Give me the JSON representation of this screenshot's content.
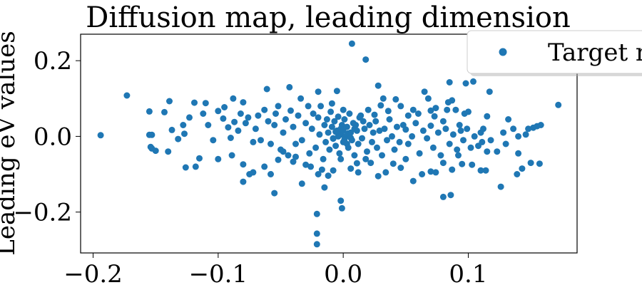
{
  "chart_data": {
    "type": "scatter",
    "title": "Diffusion map, leading dimension",
    "xlabel": "",
    "ylabel": "Leading eV values",
    "xlim": [
      -0.21,
      0.187
    ],
    "ylim": [
      -0.308,
      0.27
    ],
    "x_ticks": [
      -0.2,
      -0.1,
      0.0,
      0.1
    ],
    "x_tick_labels": [
      "−0.2",
      "−0.1",
      "0.0",
      "0.1"
    ],
    "y_ticks": [
      -0.2,
      0.0,
      0.2
    ],
    "y_tick_labels": [
      "−0.2",
      "0.0",
      "0.2"
    ],
    "grid": false,
    "legend_position": "top-right",
    "colors": {
      "series": "#1f77b4"
    },
    "series": [
      {
        "name": "Target ne",
        "points": [
          [
            0.007,
            0.245
          ],
          [
            0.018,
            0.203
          ],
          [
            -0.173,
            0.108
          ],
          [
            -0.194,
            0.003
          ],
          [
            0.172,
            0.083
          ],
          [
            -0.021,
            -0.205
          ],
          [
            -0.021,
            -0.257
          ],
          [
            -0.021,
            -0.285
          ],
          [
            -0.002,
            -0.17
          ],
          [
            -0.001,
            -0.19
          ],
          [
            -0.015,
            -0.135
          ],
          [
            -0.033,
            -0.125
          ],
          [
            -0.055,
            -0.15
          ],
          [
            0.0,
            0.07
          ],
          [
            0.011,
            -0.071
          ],
          [
            -0.009,
            0.087
          ],
          [
            0.126,
            -0.133
          ],
          [
            0.143,
            -0.085
          ],
          [
            0.15,
            -0.07
          ],
          [
            0.08,
            -0.16
          ],
          [
            0.086,
            -0.155
          ],
          [
            0.117,
            0.118
          ],
          [
            0.104,
            0.145
          ],
          [
            0.098,
            0.14
          ],
          [
            0.085,
            0.143
          ],
          [
            0.028,
            0.134
          ],
          [
            -0.005,
            0.12
          ],
          [
            -0.02,
            0.118
          ],
          [
            -0.043,
            0.13
          ],
          [
            -0.061,
            0.125
          ],
          [
            -0.088,
            0.1
          ],
          [
            -0.139,
            0.093
          ],
          [
            -0.11,
            0.088
          ],
          [
            -0.154,
            -0.028
          ],
          [
            -0.153,
            -0.032
          ],
          [
            -0.15,
            -0.038
          ],
          [
            -0.126,
            -0.082
          ],
          [
            -0.118,
            -0.08
          ],
          [
            -0.115,
            -0.058
          ],
          [
            -0.1,
            -0.06
          ],
          [
            -0.089,
            -0.05
          ],
          [
            -0.08,
            -0.074
          ],
          [
            -0.08,
            -0.12
          ],
          [
            -0.075,
            -0.1
          ],
          [
            -0.072,
            -0.095
          ],
          [
            -0.063,
            -0.08
          ],
          [
            -0.058,
            -0.1
          ],
          [
            -0.052,
            -0.062
          ],
          [
            -0.048,
            -0.04
          ],
          [
            -0.04,
            -0.067
          ],
          [
            -0.038,
            -0.054
          ],
          [
            -0.03,
            -0.075
          ],
          [
            -0.026,
            -0.08
          ],
          [
            -0.02,
            -0.1
          ],
          [
            -0.017,
            -0.088
          ],
          [
            -0.012,
            -0.104
          ],
          [
            -0.008,
            -0.09
          ],
          [
            -0.002,
            -0.06
          ],
          [
            0.006,
            -0.085
          ],
          [
            0.012,
            -0.095
          ],
          [
            0.018,
            -0.06
          ],
          [
            0.022,
            -0.07
          ],
          [
            0.028,
            -0.105
          ],
          [
            0.034,
            -0.095
          ],
          [
            0.04,
            -0.072
          ],
          [
            0.046,
            -0.083
          ],
          [
            0.05,
            -0.06
          ],
          [
            0.056,
            -0.118
          ],
          [
            0.063,
            -0.1
          ],
          [
            0.07,
            -0.093
          ],
          [
            0.074,
            -0.095
          ],
          [
            0.08,
            -0.07
          ],
          [
            0.087,
            -0.088
          ],
          [
            0.095,
            -0.073
          ],
          [
            0.103,
            -0.075
          ],
          [
            0.11,
            -0.09
          ],
          [
            0.114,
            -0.09
          ],
          [
            0.115,
            -0.04
          ],
          [
            0.123,
            -0.04
          ],
          [
            0.139,
            -0.1
          ],
          [
            0.14,
            -0.045
          ],
          [
            0.157,
            -0.072
          ],
          [
            0.158,
            0.03
          ],
          [
            0.155,
            0.027
          ],
          [
            0.152,
            0.023
          ],
          [
            0.148,
            0.02
          ],
          [
            0.146,
            0.005
          ],
          [
            0.14,
            0.0
          ],
          [
            0.132,
            0.045
          ],
          [
            0.136,
            0.02
          ],
          [
            0.115,
            0.053
          ],
          [
            0.11,
            0.01
          ],
          [
            0.111,
            -0.015
          ],
          [
            0.1,
            0.065
          ],
          [
            0.097,
            0.06
          ],
          [
            0.094,
            0.015
          ],
          [
            0.09,
            0.07
          ],
          [
            0.087,
            0.095
          ],
          [
            0.084,
            0.09
          ],
          [
            0.083,
            0.07
          ],
          [
            0.08,
            0.04
          ],
          [
            0.074,
            0.075
          ],
          [
            0.073,
            0.053
          ],
          [
            0.07,
            0.068
          ],
          [
            0.068,
            0.1
          ],
          [
            0.065,
            0.118
          ],
          [
            0.06,
            0.06
          ],
          [
            0.056,
            0.07
          ],
          [
            0.052,
            0.055
          ],
          [
            0.05,
            0.018
          ],
          [
            0.046,
            0.08
          ],
          [
            0.042,
            0.098
          ],
          [
            0.036,
            0.067
          ],
          [
            0.032,
            0.1
          ],
          [
            0.03,
            0.082
          ],
          [
            0.025,
            0.057
          ],
          [
            0.02,
            0.07
          ],
          [
            0.016,
            0.04
          ],
          [
            0.013,
            0.05
          ],
          [
            0.01,
            0.03
          ],
          [
            -0.155,
            0.004
          ],
          [
            -0.153,
            0.004
          ],
          [
            -0.155,
            0.066
          ],
          [
            -0.143,
            0.064
          ],
          [
            -0.14,
            -0.04
          ],
          [
            -0.137,
            0.017
          ],
          [
            -0.132,
            -0.007
          ],
          [
            -0.128,
            0.03
          ],
          [
            -0.127,
            0.007
          ],
          [
            -0.123,
            0.05
          ],
          [
            -0.119,
            0.089
          ],
          [
            -0.112,
            0.06
          ],
          [
            -0.108,
            0.03
          ],
          [
            -0.104,
            -0.01
          ],
          [
            -0.1,
            0.067
          ],
          [
            -0.096,
            0.047
          ],
          [
            -0.095,
            0.077
          ],
          [
            -0.092,
            0.024
          ],
          [
            -0.09,
            -0.004
          ],
          [
            -0.087,
            0.038
          ],
          [
            -0.084,
            0.015
          ],
          [
            -0.082,
            0.06
          ],
          [
            -0.08,
            0.09
          ],
          [
            -0.078,
            0.035
          ],
          [
            -0.076,
            0.05
          ],
          [
            -0.072,
            -0.015
          ],
          [
            -0.07,
            0.02
          ],
          [
            -0.068,
            0.055
          ],
          [
            -0.066,
            -0.01
          ],
          [
            -0.063,
            0.07
          ],
          [
            -0.06,
            0.04
          ],
          [
            -0.058,
            -0.02
          ],
          [
            -0.055,
            0.03
          ],
          [
            -0.054,
            0.06
          ],
          [
            -0.052,
            0.08
          ],
          [
            -0.05,
            -0.035
          ],
          [
            -0.048,
            0.01
          ],
          [
            -0.046,
            0.045
          ],
          [
            -0.044,
            -0.05
          ],
          [
            -0.042,
            0.068
          ],
          [
            -0.04,
            0.025
          ],
          [
            -0.038,
            -0.02
          ],
          [
            -0.036,
            0.055
          ],
          [
            -0.034,
            0.1
          ],
          [
            -0.033,
            -0.01
          ],
          [
            -0.03,
            0.035
          ],
          [
            -0.028,
            0.08
          ],
          [
            -0.027,
            -0.045
          ],
          [
            -0.025,
            0.02
          ],
          [
            -0.024,
            0.06
          ],
          [
            -0.022,
            -0.03
          ],
          [
            -0.02,
            0.05
          ],
          [
            -0.019,
            0.005
          ],
          [
            -0.018,
            0.08
          ],
          [
            -0.016,
            -0.06
          ],
          [
            -0.015,
            0.03
          ],
          [
            -0.014,
            -0.015
          ],
          [
            -0.013,
            0.045
          ],
          [
            -0.012,
            0.01
          ],
          [
            -0.011,
            -0.035
          ],
          [
            -0.01,
            0.065
          ],
          [
            -0.009,
            0.025
          ],
          [
            -0.008,
            -0.005
          ],
          [
            -0.007,
            0.04
          ],
          [
            -0.006,
            -0.025
          ],
          [
            -0.005,
            0.015
          ],
          [
            -0.004,
            0.052
          ],
          [
            -0.003,
            -0.045
          ],
          [
            -0.002,
            0.005
          ],
          [
            -0.001,
            0.03
          ],
          [
            0.0,
            -0.015
          ],
          [
            0.001,
            0.045
          ],
          [
            0.002,
            0.0
          ],
          [
            0.003,
            0.025
          ],
          [
            0.004,
            -0.03
          ],
          [
            0.005,
            0.06
          ],
          [
            0.006,
            0.01
          ],
          [
            0.007,
            -0.01
          ],
          [
            0.008,
            0.035
          ],
          [
            0.009,
            -0.05
          ],
          [
            0.011,
            0.015
          ],
          [
            0.012,
            -0.02
          ],
          [
            0.014,
            0.055
          ],
          [
            0.015,
            -0.005
          ],
          [
            0.017,
            0.02
          ],
          [
            0.019,
            -0.04
          ],
          [
            0.021,
            0.03
          ],
          [
            0.023,
            -0.015
          ],
          [
            0.024,
            0.01
          ],
          [
            0.026,
            0.04
          ],
          [
            0.027,
            -0.03
          ],
          [
            0.029,
            0.015
          ],
          [
            0.031,
            -0.05
          ],
          [
            0.033,
            0.02
          ],
          [
            0.035,
            -0.01
          ],
          [
            0.037,
            0.045
          ],
          [
            0.039,
            0.0
          ],
          [
            0.041,
            -0.035
          ],
          [
            0.043,
            0.025
          ],
          [
            0.045,
            -0.015
          ],
          [
            0.048,
            0.03
          ],
          [
            0.052,
            -0.02
          ],
          [
            0.055,
            0.0
          ],
          [
            0.058,
            0.035
          ],
          [
            0.061,
            -0.045
          ],
          [
            0.064,
            0.015
          ],
          [
            0.067,
            -0.005
          ],
          [
            0.07,
            0.028
          ],
          [
            0.072,
            -0.03
          ],
          [
            0.076,
            0.01
          ],
          [
            0.078,
            -0.05
          ],
          [
            0.082,
            0.02
          ],
          [
            0.085,
            -0.02
          ],
          [
            0.088,
            0.005
          ],
          [
            0.091,
            -0.035
          ],
          [
            0.093,
            0.03
          ],
          [
            0.096,
            -0.01
          ],
          [
            0.099,
            0.02
          ],
          [
            0.102,
            -0.03
          ],
          [
            0.105,
            0.0
          ],
          [
            0.108,
            -0.025
          ],
          [
            0.112,
            0.02
          ],
          [
            0.118,
            -0.01
          ],
          [
            0.128,
            0.01
          ],
          [
            0.13,
            -0.02
          ],
          [
            0.092,
            -0.05
          ],
          [
            -0.004,
            0.0
          ],
          [
            0.001,
            -0.008
          ],
          [
            0.004,
            0.008
          ],
          [
            -0.006,
            0.012
          ],
          [
            0.006,
            -0.004
          ],
          [
            -0.002,
            0.02
          ],
          [
            0.003,
            -0.02
          ],
          [
            -0.008,
            -0.006
          ],
          [
            0.009,
            0.02
          ],
          [
            0.0,
            0.015
          ]
        ]
      }
    ]
  }
}
